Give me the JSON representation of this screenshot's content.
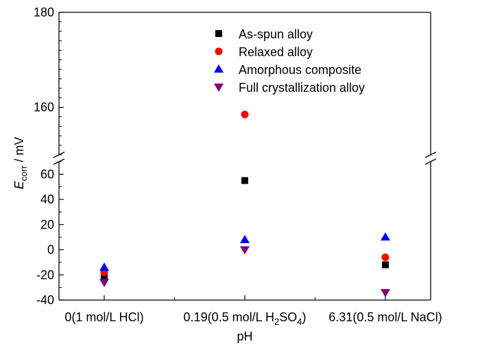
{
  "chart_data": {
    "type": "scatter",
    "xlabel": "pH",
    "ylabel": {
      "main": "E",
      "sub": "corr",
      "rest": " / mV"
    },
    "categories": [
      {
        "text": "0(1 mol/L HCl)"
      },
      {
        "text": "0.19(0.5 mol/L H",
        "sub": "2",
        "mid": "SO",
        "sub2": "4",
        "tail": ")"
      },
      {
        "text": "6.31(0.5 mol/L NaCl)"
      }
    ],
    "y_axis_broken": true,
    "y_segments": {
      "upper": {
        "range": [
          150,
          180
        ],
        "ticks": [
          160,
          180
        ]
      },
      "lower": {
        "range": [
          -40,
          70
        ],
        "ticks": [
          -40,
          -20,
          0,
          20,
          40,
          60
        ]
      }
    },
    "legend_position": "top-right",
    "series": [
      {
        "name": "As-spun alloy",
        "marker": "square",
        "color": "#000000",
        "values": [
          -22,
          55,
          -12
        ]
      },
      {
        "name": "Relaxed alloy",
        "marker": "circle",
        "color": "#ff0000",
        "values": [
          -18,
          158.5,
          -6
        ]
      },
      {
        "name": "Amorphous composite",
        "marker": "triangle-up",
        "color": "#0000ff",
        "values": [
          -14,
          8,
          10
        ]
      },
      {
        "name": "Full crystallization alloy",
        "marker": "triangle-down",
        "color": "#800080",
        "values": [
          -26,
          0,
          -34
        ]
      }
    ]
  }
}
